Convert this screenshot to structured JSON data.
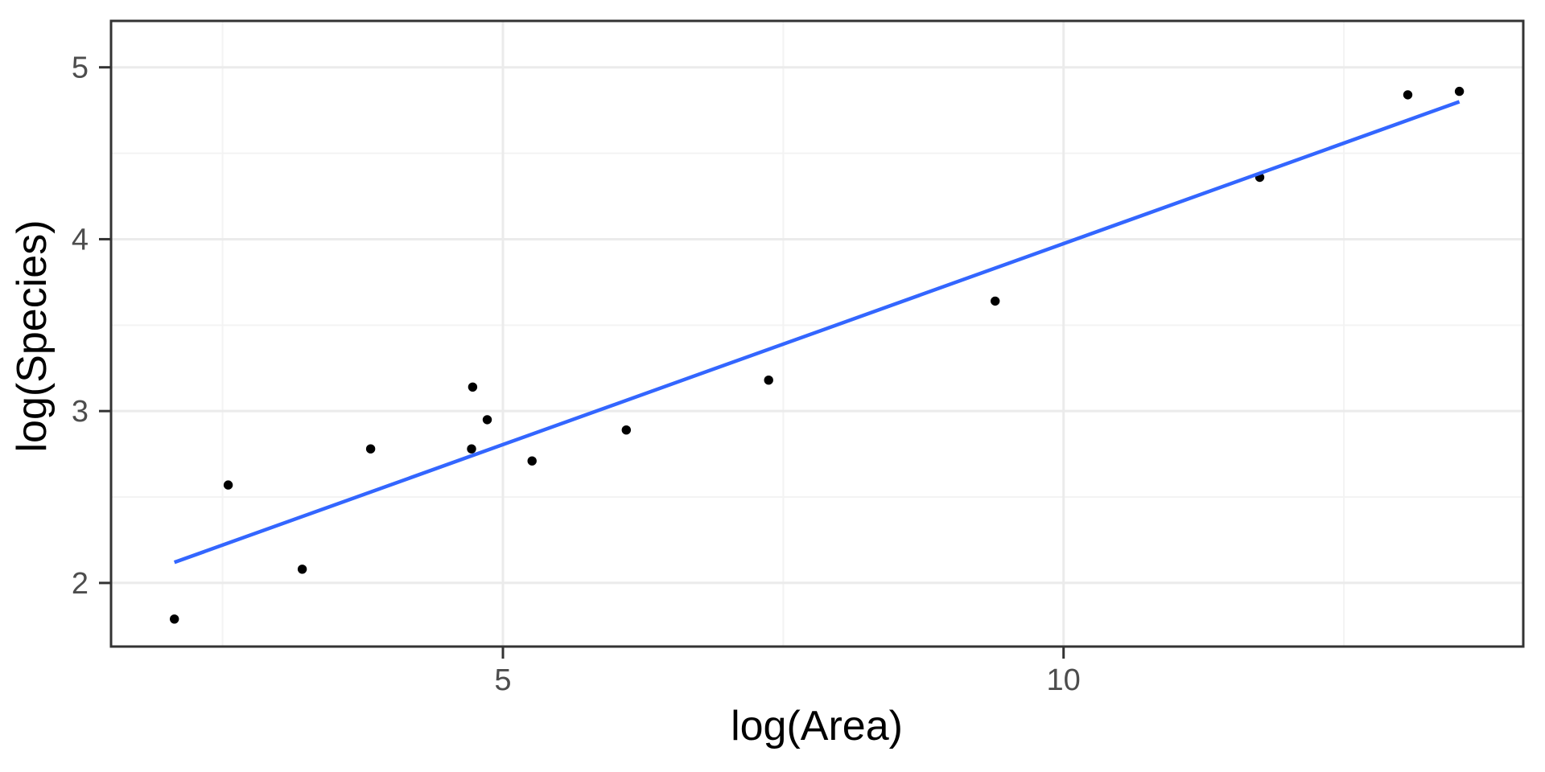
{
  "figure": {
    "background": "#ffffff"
  },
  "chart_data": {
    "type": "scatter",
    "title": "",
    "xlabel": "log(Area)",
    "ylabel": "log(Species)",
    "x_ticks": [
      5,
      10
    ],
    "x_minor_ticks": [
      2.5,
      7.5,
      12.5
    ],
    "y_ticks": [
      2,
      3,
      4,
      5
    ],
    "y_minor_ticks": [
      2.5,
      3.5,
      4.5
    ],
    "xlim": [
      1.505,
      14.1
    ],
    "ylim": [
      1.63,
      5.27
    ],
    "grid": "major and minor, on white panel with full border (ggplot theme_bw style)",
    "legend": "none",
    "points": [
      [
        2.07,
        1.79
      ],
      [
        2.55,
        2.57
      ],
      [
        3.21,
        2.08
      ],
      [
        3.82,
        2.78
      ],
      [
        4.72,
        2.78
      ],
      [
        4.73,
        3.14
      ],
      [
        4.86,
        2.95
      ],
      [
        5.26,
        2.71
      ],
      [
        6.1,
        2.89
      ],
      [
        7.37,
        3.18
      ],
      [
        9.39,
        3.64
      ],
      [
        11.75,
        4.36
      ],
      [
        13.07,
        4.84
      ],
      [
        13.53,
        4.86
      ]
    ],
    "trend_line": {
      "type": "linear-fit",
      "x_start": 2.07,
      "y_start": 2.12,
      "x_end": 13.53,
      "y_end": 4.8
    }
  },
  "style": {
    "point_color": "#000000",
    "trend_color": "#3366FF",
    "panel_border_color": "#333333",
    "major_grid_color": "#EBEBEB",
    "minor_grid_color": "#F3F3F3",
    "tick_color": "#333333",
    "tick_label_color": "#4d4d4d",
    "axis_title_color": "#000000"
  }
}
